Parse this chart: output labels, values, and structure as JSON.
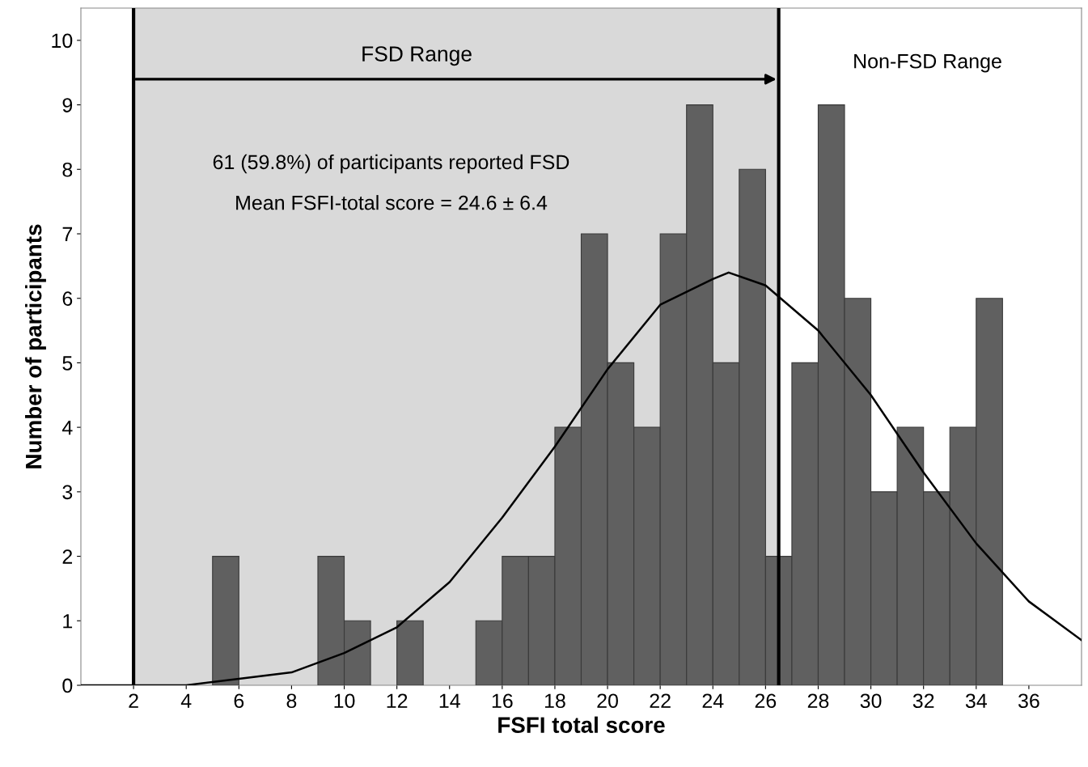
{
  "chart_data": {
    "type": "histogram",
    "xlabel": "FSFI total score",
    "ylabel": "Number of participants",
    "bins": [
      5,
      6,
      7,
      8,
      9,
      10,
      11,
      12,
      13,
      14,
      15,
      16,
      17,
      18,
      19,
      20,
      21,
      22,
      23,
      24,
      25,
      26,
      27,
      28,
      29,
      30,
      31,
      32,
      33,
      34,
      35
    ],
    "values": [
      2,
      0,
      0,
      0,
      2,
      1,
      0,
      1,
      0,
      0,
      1,
      2,
      2,
      4,
      7,
      5,
      4,
      7,
      9,
      5,
      8,
      2,
      5,
      9,
      6,
      3,
      4,
      3,
      4,
      6
    ],
    "color": "#606060",
    "series": [
      {
        "type": "line",
        "color": "#000000",
        "x": [
          0,
          2,
          4,
          6,
          8,
          10,
          12,
          14,
          16,
          18,
          20,
          22,
          24,
          24.6,
          26,
          28,
          30,
          32,
          34,
          36,
          38
        ],
        "values": [
          0,
          0,
          0,
          0.1,
          0.2,
          0.5,
          0.9,
          1.6,
          2.6,
          3.7,
          4.9,
          5.9,
          6.3,
          6.4,
          6.2,
          5.5,
          4.5,
          3.3,
          2.2,
          1.3,
          0.7
        ]
      }
    ],
    "xlim": [
      0,
      38
    ],
    "xticks": [
      2,
      4,
      6,
      8,
      10,
      12,
      14,
      16,
      18,
      20,
      22,
      24,
      26,
      28,
      30,
      32,
      34,
      36
    ],
    "ylim": [
      0,
      10.5
    ],
    "yticks": [
      0,
      1,
      2,
      3,
      4,
      5,
      6,
      7,
      8,
      9,
      10
    ],
    "bands": [
      {
        "axis": "x",
        "from": 2,
        "to": 26.5,
        "label": "FSD Range",
        "color": "#d9d9d9"
      }
    ],
    "ref_lines": [
      {
        "axis": "x",
        "value": 2,
        "color": "#000000"
      },
      {
        "axis": "x",
        "value": 26.5,
        "color": "#000000"
      }
    ],
    "annotations": [
      "Non-FSD Range",
      "61 (59.8%) of participants reported FSD",
      "Mean FSFI-total score = 24.6 ± 6.4"
    ],
    "grid": false
  }
}
